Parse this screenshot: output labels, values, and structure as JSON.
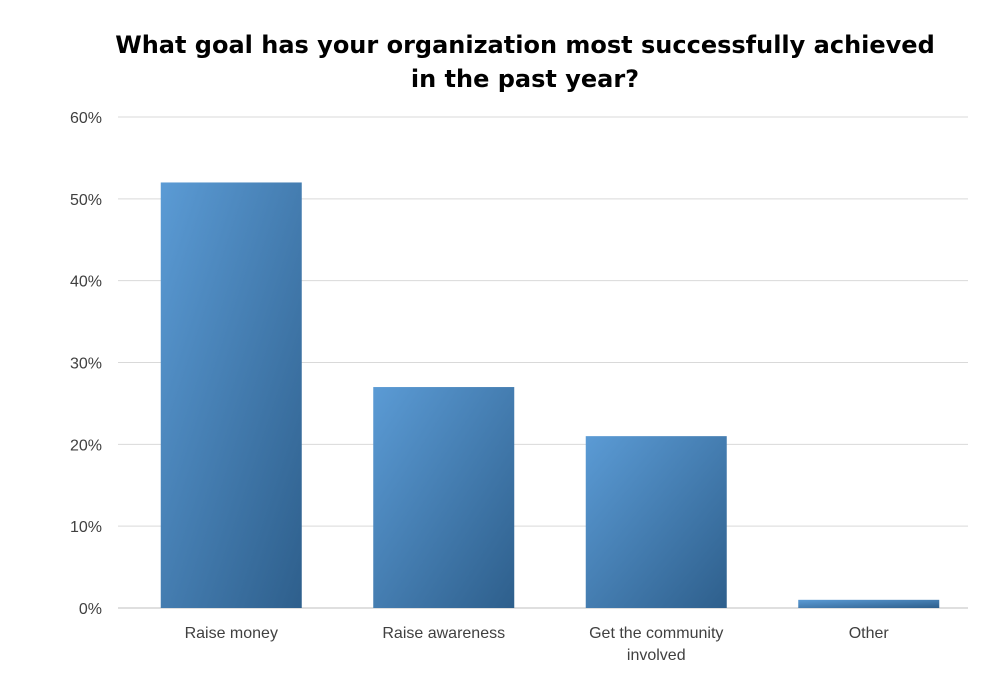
{
  "chart_data": {
    "type": "bar",
    "title": "What goal has your organization most successfully achieved in the past year?",
    "title_lines": [
      "What goal has your organization most successfully achieved",
      "in the past year?"
    ],
    "categories": [
      "Raise money",
      "Raise awareness",
      "Get the community involved",
      "Other"
    ],
    "category_lines": [
      [
        "Raise money"
      ],
      [
        "Raise awareness"
      ],
      [
        "Get the community",
        "involved"
      ],
      [
        "Other"
      ]
    ],
    "values": [
      52,
      27,
      21,
      1
    ],
    "yticks": [
      0,
      10,
      20,
      30,
      40,
      50,
      60
    ],
    "ytick_labels": [
      "0%",
      "10%",
      "20%",
      "30%",
      "40%",
      "50%",
      "60%"
    ],
    "ylim": [
      0,
      60
    ],
    "xlabel": "",
    "ylabel": "",
    "grid": true,
    "legend": "none",
    "colors": {
      "bar_light": "#5b9bd5",
      "bar_dark": "#2e5f8c",
      "grid": "#d9d9d9",
      "axis": "#bfbfbf",
      "text": "#404040"
    }
  }
}
